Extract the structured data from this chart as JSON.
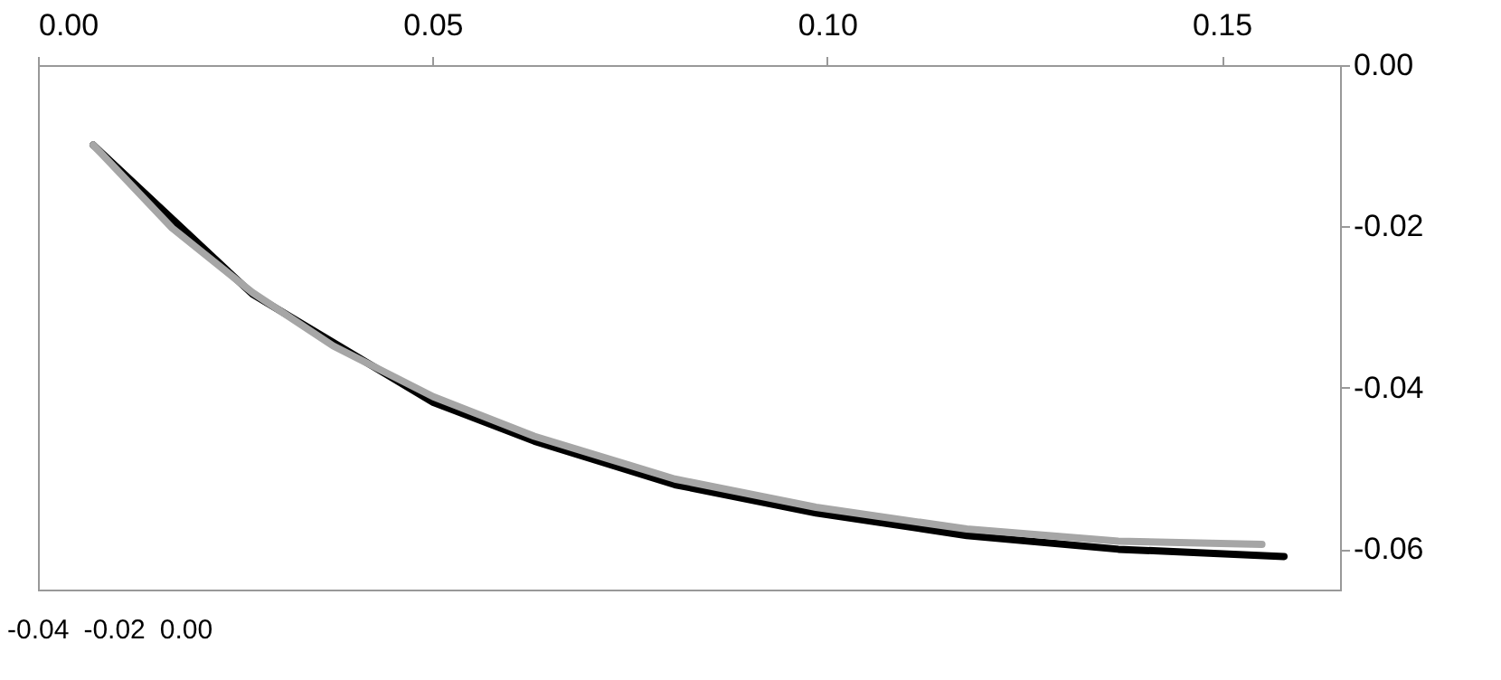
{
  "chart_data": {
    "type": "line",
    "xlim": [
      0,
      0.165
    ],
    "xticks": [
      {
        "value": 0,
        "label": "0.00"
      },
      0.05,
      {
        "value": 0.1,
        "label": "0.10"
      },
      0.15
    ],
    "ylim": [
      -0.065,
      0.0
    ],
    "yticks": [
      {
        "value": 0,
        "label": "0.00"
      },
      -0.02,
      -0.04,
      -0.06
    ],
    "series": [
      {
        "color": "#000000",
        "x": [
          0.007,
          0.0272,
          0.0501,
          0.0629,
          0.0807,
          0.0986,
          0.1177,
          0.1369,
          0.1579
        ],
        "values": [
          -0.0099,
          -0.0284,
          -0.0418,
          -0.0466,
          -0.052,
          -0.0555,
          -0.0583,
          -0.06,
          -0.0609
        ]
      },
      {
        "color": "#a6a6a6",
        "x": [
          0.007,
          0.017,
          0.0272,
          0.0374,
          0.0501,
          0.0629,
          0.0807,
          0.0986,
          0.1177,
          0.1369,
          0.1551
        ],
        "values": [
          -0.0099,
          -0.0202,
          -0.0282,
          -0.0348,
          -0.0411,
          -0.046,
          -0.0513,
          -0.0548,
          -0.0575,
          -0.059,
          -0.0594
        ]
      }
    ],
    "annotations": [
      "-0.04",
      "-0.02",
      "0.00"
    ],
    "grid": false,
    "marker": "none",
    "line_style": "solid"
  }
}
